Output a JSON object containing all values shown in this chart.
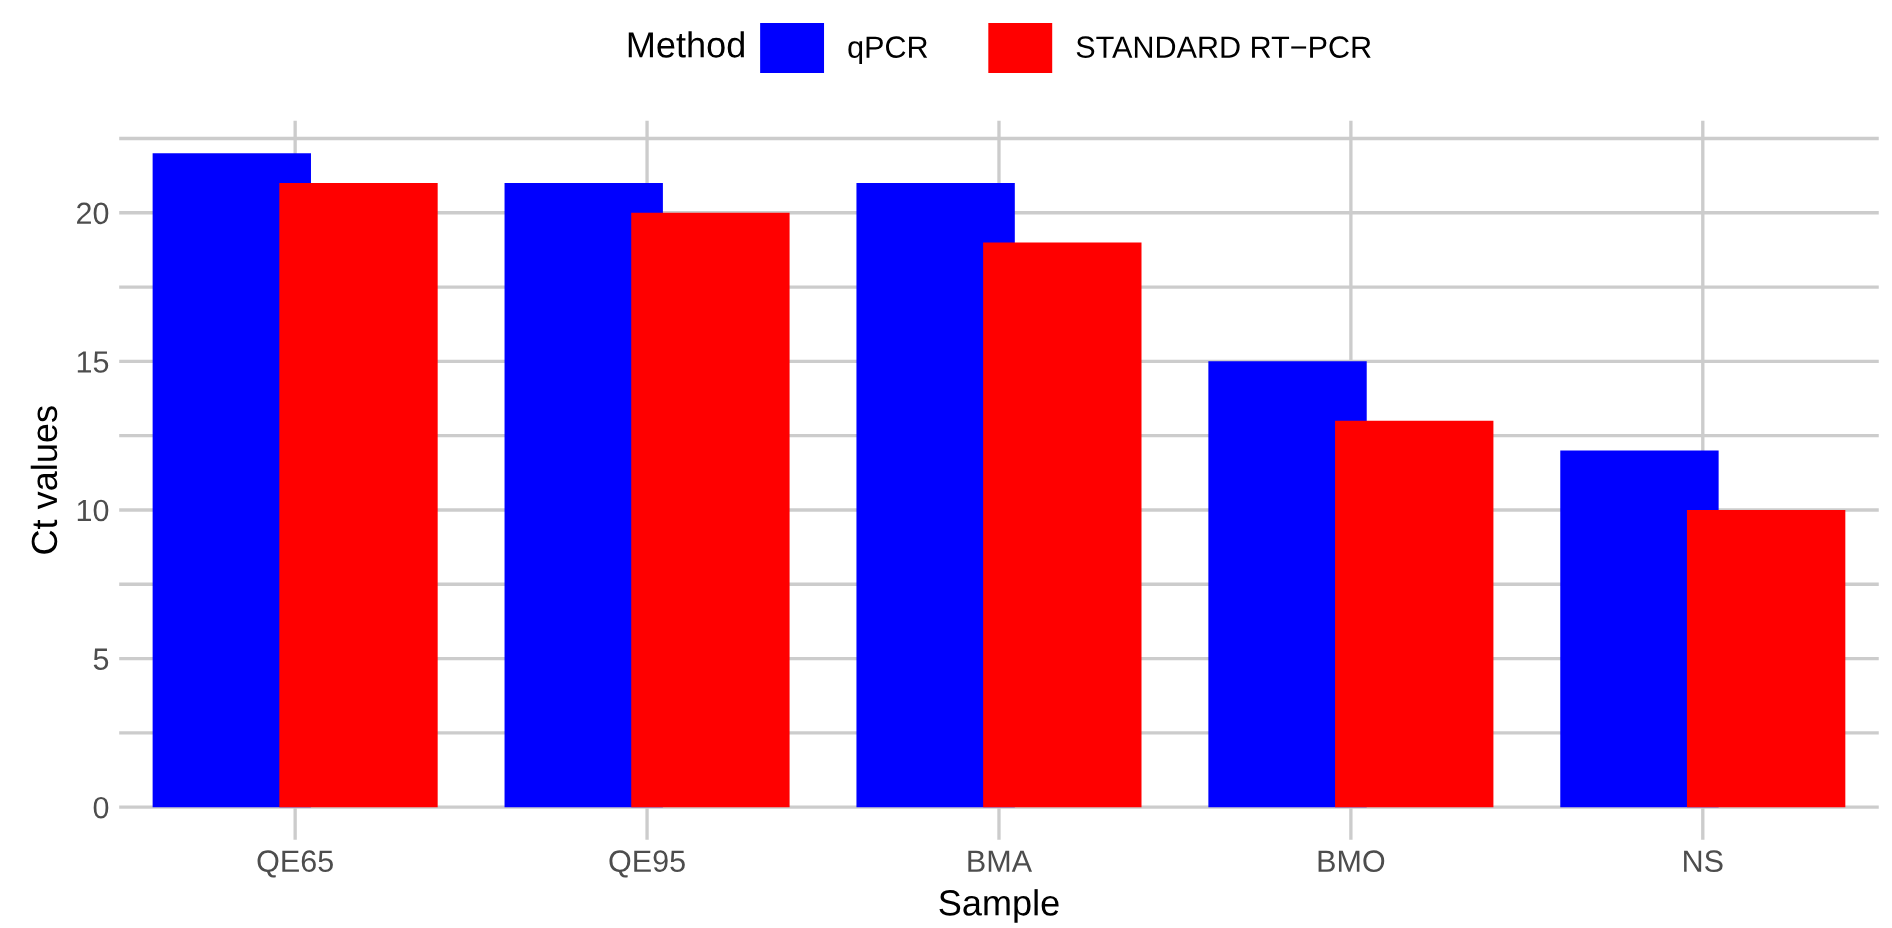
{
  "chart_data": {
    "type": "bar",
    "xlabel": "Sample",
    "ylabel": "Ct values",
    "legend_title": "Method",
    "legend": "top",
    "categories": [
      "QE65",
      "QE95",
      "BMA",
      "BMO",
      "NS"
    ],
    "series": [
      {
        "name": "qPCR",
        "color": "#0000ff",
        "values": [
          22,
          21,
          21,
          15,
          12
        ]
      },
      {
        "name": "STANDARD RT−PCR",
        "color": "#ff0000",
        "values": [
          21,
          20,
          19,
          13,
          10
        ]
      }
    ],
    "ylim": [
      -1.1,
      23.1
    ],
    "yticks": [
      0,
      {
        "value": 2.5,
        "label": null
      },
      5,
      {
        "value": 7.5,
        "label": null
      },
      10,
      {
        "value": 12.5,
        "label": null
      },
      15,
      {
        "value": 17.5,
        "label": null
      },
      20,
      {
        "value": 22.5,
        "label": null
      }
    ],
    "grid": true
  }
}
